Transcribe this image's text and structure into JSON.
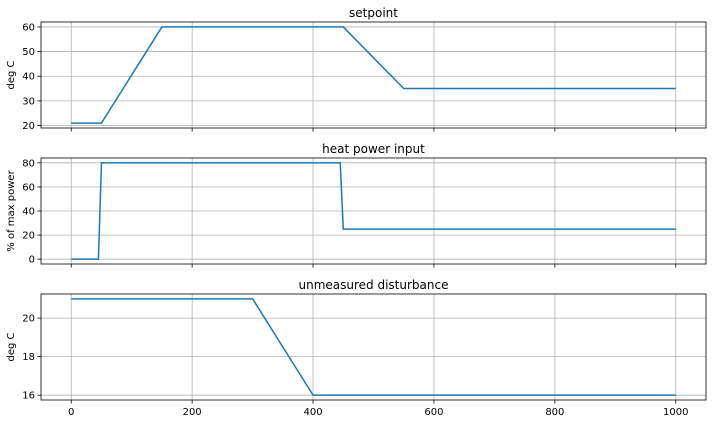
{
  "figure": {
    "shared_x_ticks": [
      0,
      200,
      400,
      600,
      800,
      1000
    ],
    "series_color": "#1f77b4"
  },
  "chart_data": [
    {
      "type": "line",
      "title": "setpoint",
      "xlabel": "",
      "ylabel": "deg C",
      "xlim": [
        -50,
        1050
      ],
      "ylim": [
        19,
        62
      ],
      "yticks": [
        20,
        30,
        40,
        50,
        60
      ],
      "grid": true,
      "x": [
        0,
        50,
        150,
        450,
        550,
        1000
      ],
      "y": [
        21,
        21,
        60,
        60,
        35,
        35
      ]
    },
    {
      "type": "line",
      "title": "heat power input",
      "xlabel": "",
      "ylabel": "% of max power",
      "xlim": [
        -50,
        1050
      ],
      "ylim": [
        -4,
        84
      ],
      "yticks": [
        0,
        20,
        40,
        60,
        80
      ],
      "grid": true,
      "x": [
        0,
        45,
        50,
        445,
        450,
        1000
      ],
      "y": [
        0,
        0,
        80,
        80,
        25,
        25
      ]
    },
    {
      "type": "line",
      "title": "unmeasured disturbance",
      "xlabel": "",
      "ylabel": "deg C",
      "xlim": [
        -50,
        1050
      ],
      "ylim": [
        15.75,
        21.25
      ],
      "yticks": [
        16,
        18,
        20
      ],
      "grid": true,
      "x": [
        0,
        300,
        400,
        1000
      ],
      "y": [
        21,
        21,
        16,
        16
      ]
    }
  ]
}
